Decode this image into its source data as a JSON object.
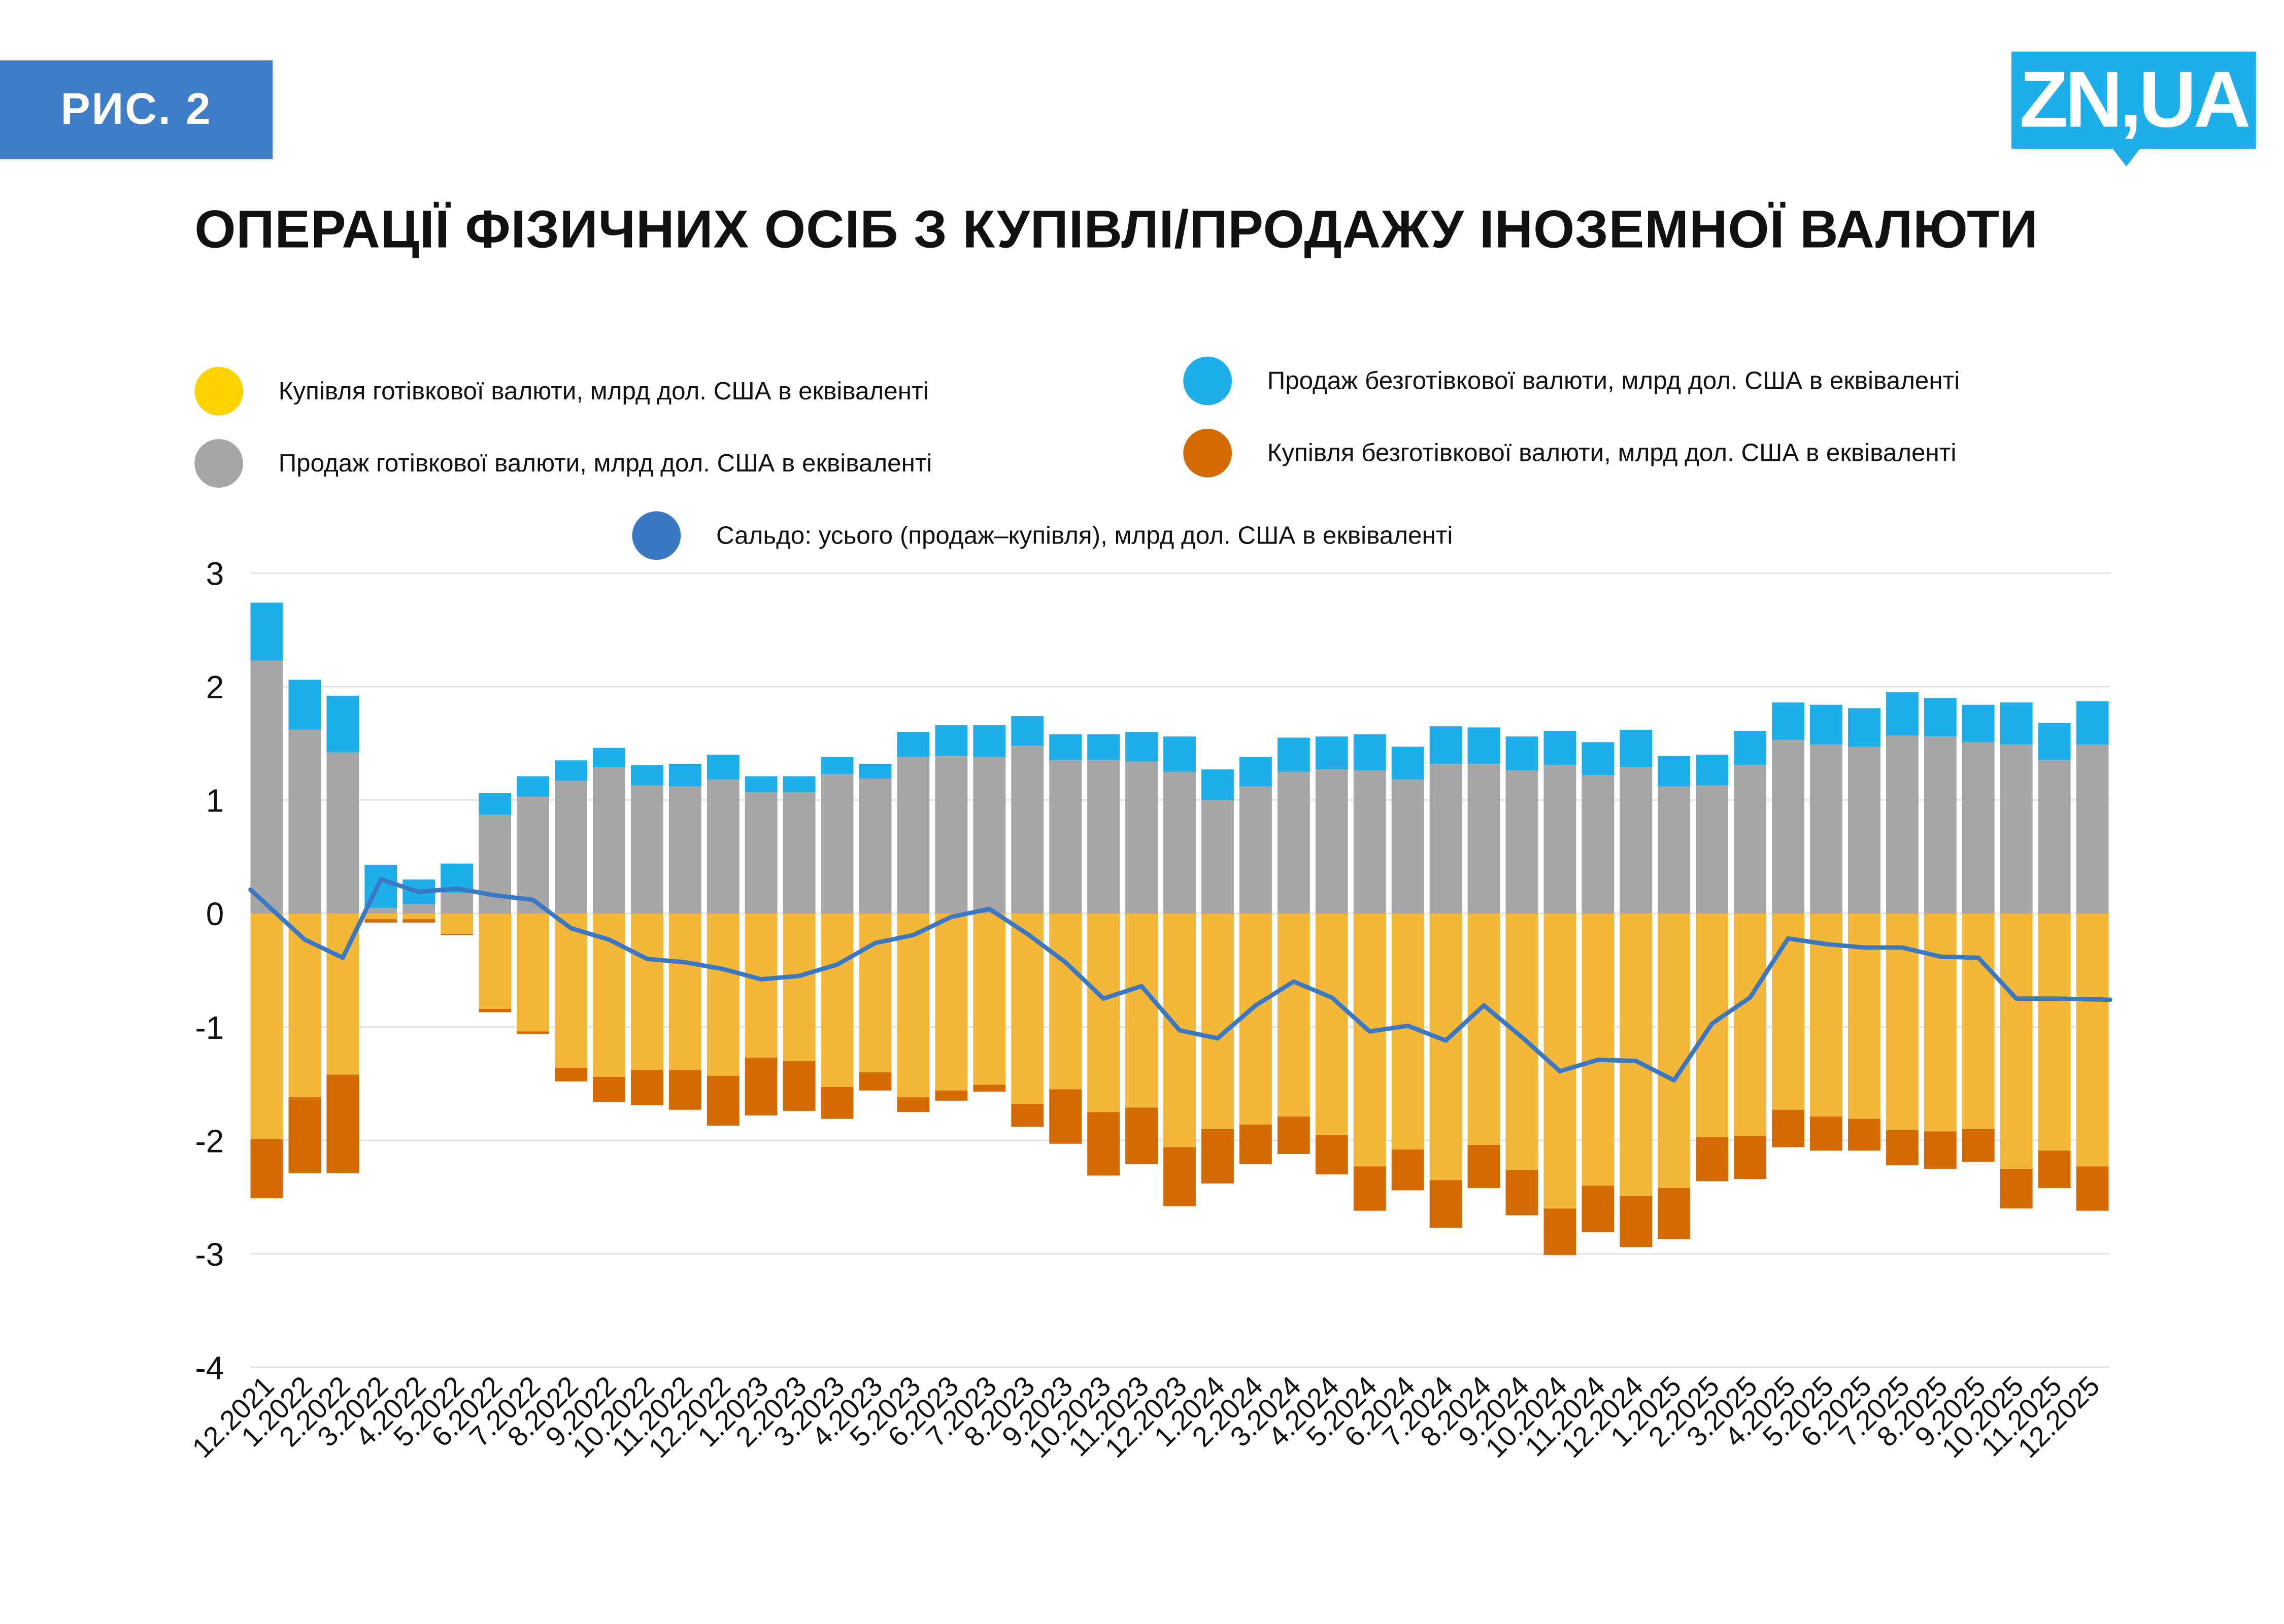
{
  "badge": "РИС. 2",
  "logo": "ZN,UA",
  "title": "ОПЕРАЦІЇ ФІЗИЧНИХ ОСІБ З КУПІВЛІ/ПРОДАЖУ ІНОЗЕМНОЇ ВАЛЮТИ",
  "colors": {
    "cash_buy": "#F3B73A",
    "cash_buy_legend": "#FFD200",
    "cash_sale": "#A6A6A6",
    "noncash_sale": "#1EAEEA",
    "noncash_buy": "#D46A04",
    "balance": "#3B78C4",
    "badge": "#3F7DC9"
  },
  "chart_data": {
    "type": "bar",
    "stacked": true,
    "ylim": [
      -4,
      3
    ],
    "yticks": [
      "3",
      "2",
      "1",
      "0",
      "-1",
      "-2",
      "-3",
      "-4"
    ],
    "grid": true,
    "legend_position": "top",
    "categories": [
      "12.2021",
      "1.2022",
      "2.2022",
      "3.2022",
      "4.2022",
      "5.2022",
      "6.2022",
      "7.2022",
      "8.2022",
      "9.2022",
      "10.2022",
      "11.2022",
      "12.2022",
      "1.2023",
      "2.2023",
      "3.2023",
      "4.2023",
      "5.2023",
      "6.2023",
      "7.2023",
      "8.2023",
      "9.2023",
      "10.2023",
      "11.2023",
      "12.2023",
      "1.2024",
      "2.2024",
      "3.2024",
      "4.2024",
      "5.2024",
      "6.2024",
      "7.2024",
      "8.2024",
      "9.2024",
      "10.2024",
      "11.2024",
      "12.2024",
      "1.2025",
      "2.2025",
      "3.2025",
      "4.2025",
      "5.2025",
      "6.2025",
      "7.2025",
      "8.2025",
      "9.2025",
      "10.2025",
      "11.2025",
      "12.2025"
    ],
    "series": [
      {
        "name": "Купівля готівкової валюти, млрд дол. США в еквіваленті",
        "type": "bar",
        "values": [
          -1.99,
          -1.62,
          -1.42,
          -0.05,
          -0.05,
          -0.18,
          -0.84,
          -1.04,
          -1.36,
          -1.44,
          -1.38,
          -1.38,
          -1.43,
          -1.27,
          -1.3,
          -1.53,
          -1.4,
          -1.62,
          -1.56,
          -1.51,
          -1.68,
          -1.55,
          -1.75,
          -1.71,
          -2.06,
          -1.9,
          -1.86,
          -1.79,
          -1.95,
          -2.23,
          -2.08,
          -2.35,
          -2.04,
          -2.26,
          -2.6,
          -2.4,
          -2.49,
          -2.42,
          -1.97,
          -1.96,
          -1.73,
          -1.79,
          -1.81,
          -1.91,
          -1.92,
          -1.9,
          -2.25,
          -2.09,
          -2.23
        ]
      },
      {
        "name": "Продаж готівкової валюти, млрд дол. США в еквіваленті",
        "type": "bar",
        "values": [
          2.23,
          1.62,
          1.42,
          0.05,
          0.08,
          0.18,
          0.87,
          1.03,
          1.17,
          1.29,
          1.13,
          1.12,
          1.18,
          1.07,
          1.07,
          1.23,
          1.19,
          1.38,
          1.39,
          1.38,
          1.48,
          1.35,
          1.35,
          1.34,
          1.25,
          1.0,
          1.12,
          1.25,
          1.27,
          1.26,
          1.18,
          1.32,
          1.32,
          1.26,
          1.31,
          1.22,
          1.29,
          1.12,
          1.13,
          1.31,
          1.53,
          1.49,
          1.47,
          1.57,
          1.56,
          1.51,
          1.49,
          1.35,
          1.49
        ]
      },
      {
        "name": "Продаж безготівкової валюти, млрд дол. США в еквіваленті",
        "type": "bar",
        "values": [
          0.51,
          0.44,
          0.5,
          0.38,
          0.22,
          0.26,
          0.19,
          0.18,
          0.18,
          0.17,
          0.18,
          0.2,
          0.22,
          0.14,
          0.14,
          0.15,
          0.13,
          0.22,
          0.27,
          0.28,
          0.26,
          0.23,
          0.23,
          0.26,
          0.31,
          0.27,
          0.26,
          0.3,
          0.29,
          0.32,
          0.29,
          0.33,
          0.32,
          0.3,
          0.3,
          0.29,
          0.33,
          0.27,
          0.27,
          0.3,
          0.33,
          0.35,
          0.34,
          0.38,
          0.34,
          0.33,
          0.37,
          0.33,
          0.38
        ]
      },
      {
        "name": "Купівля безготівкової валюти, млрд дол. США в еквіваленті",
        "type": "bar",
        "values": [
          -0.52,
          -0.67,
          -0.87,
          -0.03,
          -0.03,
          -0.01,
          -0.03,
          -0.02,
          -0.12,
          -0.22,
          -0.31,
          -0.35,
          -0.44,
          -0.51,
          -0.44,
          -0.28,
          -0.16,
          -0.13,
          -0.09,
          -0.06,
          -0.2,
          -0.48,
          -0.56,
          -0.5,
          -0.52,
          -0.48,
          -0.35,
          -0.33,
          -0.35,
          -0.39,
          -0.36,
          -0.42,
          -0.38,
          -0.4,
          -0.41,
          -0.41,
          -0.45,
          -0.45,
          -0.39,
          -0.38,
          -0.33,
          -0.3,
          -0.28,
          -0.31,
          -0.33,
          -0.29,
          -0.35,
          -0.33,
          -0.39
        ]
      },
      {
        "name": "Сальдо: усього (продаж–купівля), млрд дол. США в еквіваленті",
        "type": "line",
        "values": [
          0.21,
          -0.23,
          -0.39,
          0.3,
          0.19,
          0.22,
          0.16,
          0.12,
          -0.13,
          -0.23,
          -0.4,
          -0.43,
          -0.49,
          -0.58,
          -0.55,
          -0.45,
          -0.26,
          -0.19,
          -0.03,
          0.04,
          -0.18,
          -0.43,
          -0.75,
          -0.64,
          -1.03,
          -1.1,
          -0.81,
          -0.6,
          -0.74,
          -1.04,
          -0.99,
          -1.12,
          -0.81,
          -1.09,
          -1.39,
          -1.29,
          -1.3,
          -1.47,
          -0.97,
          -0.74,
          -0.22,
          -0.27,
          -0.3,
          -0.3,
          -0.38,
          -0.39,
          -0.75,
          -0.75,
          -0.76
        ]
      }
    ]
  }
}
